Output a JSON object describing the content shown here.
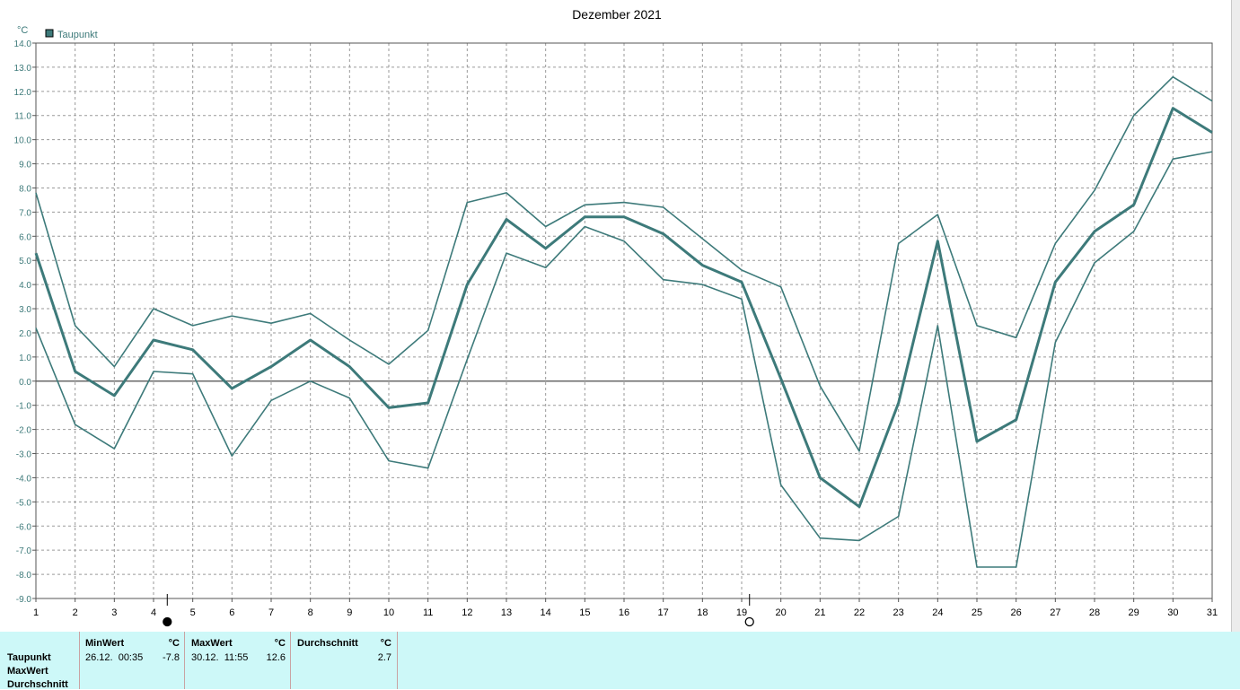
{
  "chart_data": {
    "type": "line",
    "title": "Dezember 2021",
    "ylabel": "°C",
    "legend": "Taupunkt",
    "legend_position": "top-left",
    "ylim": [
      -9,
      14
    ],
    "xlim": [
      1,
      31
    ],
    "grid": true,
    "y_ticks": [
      "-9.0",
      "-8.0",
      "-7.0",
      "-6.0",
      "-5.0",
      "-4.0",
      "-3.0",
      "-2.0",
      "-1.0",
      "0.0",
      "1.0",
      "2.0",
      "3.0",
      "4.0",
      "5.0",
      "6.0",
      "7.0",
      "8.0",
      "9.0",
      "10.0",
      "11.0",
      "12.0",
      "13.0",
      "14.0"
    ],
    "x": [
      1,
      2,
      3,
      4,
      5,
      6,
      7,
      8,
      9,
      10,
      11,
      12,
      13,
      14,
      15,
      16,
      17,
      18,
      19,
      20,
      21,
      22,
      23,
      24,
      25,
      26,
      27,
      28,
      29,
      30,
      31
    ],
    "series": [
      {
        "name": "Taupunkt",
        "values": [
          5.3,
          0.4,
          -0.6,
          1.7,
          1.3,
          -0.3,
          0.6,
          1.7,
          0.6,
          -1.1,
          -0.9,
          4.0,
          6.7,
          5.5,
          6.8,
          6.8,
          6.1,
          4.8,
          4.1,
          0.1,
          -4.0,
          -5.2,
          -0.9,
          5.8,
          -2.5,
          -1.6,
          4.1,
          6.2,
          7.3,
          11.3,
          10.3
        ]
      },
      {
        "role": "max",
        "values": [
          7.8,
          2.3,
          0.6,
          3.0,
          2.3,
          2.7,
          2.4,
          2.8,
          1.7,
          0.7,
          2.1,
          7.4,
          7.8,
          6.4,
          7.3,
          7.4,
          7.2,
          5.9,
          4.6,
          3.9,
          -0.2,
          -2.9,
          5.7,
          6.9,
          2.3,
          1.8,
          5.7,
          7.9,
          11.0,
          12.6,
          11.6
        ]
      },
      {
        "role": "min",
        "values": [
          2.2,
          -1.8,
          -2.8,
          0.4,
          0.3,
          -3.1,
          -0.8,
          0.0,
          -0.7,
          -3.3,
          -3.6,
          0.9,
          5.3,
          4.7,
          6.4,
          5.8,
          4.2,
          4.0,
          3.4,
          -4.3,
          -6.5,
          -6.6,
          -5.6,
          2.3,
          -7.7,
          -7.7,
          1.6,
          4.9,
          6.2,
          9.2,
          9.5
        ]
      }
    ],
    "moon_phases": [
      {
        "day": 4.35,
        "phase": "new-moon"
      },
      {
        "day": 19.2,
        "phase": "full-moon"
      }
    ],
    "line_color": "#3d7a7a"
  },
  "stats": {
    "row_labels": [
      "Taupunkt",
      "MaxWert",
      "Durchschnitt"
    ],
    "columns": [
      {
        "header": "MinWert",
        "unit": "°C",
        "datetime": "26.12.  00:35",
        "value": "-7.8"
      },
      {
        "header": "MaxWert",
        "unit": "°C",
        "datetime": "30.12.  11:55",
        "value": "12.6"
      },
      {
        "header": "Durchschnitt",
        "unit": "°C",
        "datetime": "",
        "value": "2.7"
      }
    ]
  }
}
